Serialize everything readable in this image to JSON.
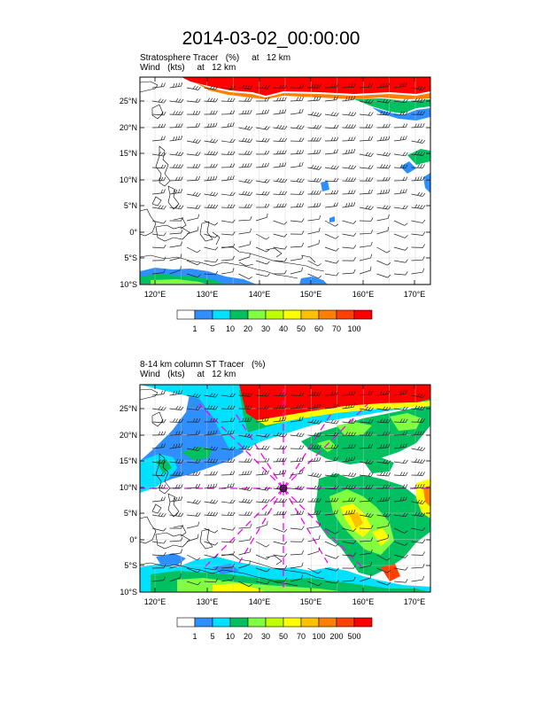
{
  "title": "2014-03-02_00:00:00",
  "panels": [
    {
      "title_line1": "Stratosphere Tracer   (%)     at   12 km",
      "title_line2": "Wind   (kts)     at   12 km",
      "lat_labels": [
        "25°N",
        "20°N",
        "15°N",
        "10°N",
        "5°N",
        "0°",
        "5°S",
        "10°S"
      ],
      "lon_labels": [
        "120°E",
        "130°E",
        "140°E",
        "150°E",
        "160°E",
        "170°E"
      ],
      "colorbar_labels": [
        "1",
        "5",
        "10",
        "20",
        "30",
        "40",
        "50",
        "60",
        "70",
        "100"
      ],
      "colorbar_colors": [
        "#ffffff",
        "#2f8fff",
        "#00e0ff",
        "#00c060",
        "#80ff40",
        "#c0ff00",
        "#ffff00",
        "#ffc000",
        "#ff8000",
        "#ff4000",
        "#ff0000"
      ]
    },
    {
      "title_line1": "8-14 km column ST Tracer   (%)",
      "title_line2": "Wind   (kts)     at   12 km",
      "lat_labels": [
        "25°N",
        "20°N",
        "15°N",
        "10°N",
        "5°N",
        "0°",
        "5°S",
        "10°S"
      ],
      "lon_labels": [
        "120°E",
        "130°E",
        "140°E",
        "150°E",
        "160°E",
        "170°E"
      ],
      "colorbar_labels": [
        "1",
        "5",
        "10",
        "20",
        "30",
        "50",
        "70",
        "100",
        "200",
        "500"
      ],
      "colorbar_colors": [
        "#ffffff",
        "#2f8fff",
        "#00e0ff",
        "#00c060",
        "#80ff40",
        "#c0ff00",
        "#ffff00",
        "#ffc000",
        "#ff8000",
        "#ff4000",
        "#ff0000"
      ]
    }
  ]
}
